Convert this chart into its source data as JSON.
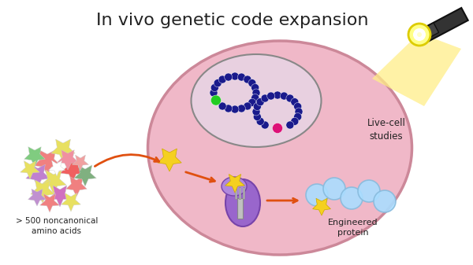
{
  "title": "In vivo genetic code expansion",
  "title_fontsize": 16,
  "title_color": "#222222",
  "background_color": "#ffffff",
  "label_amino": "> 500 noncanonical\namino acids",
  "label_livecell": "Live-cell\nstudies",
  "label_engineered": "Engineered\nprotein",
  "cell_color": "#f0b8c8",
  "cell_edge_color": "#cc8899",
  "nucleus_color": "#e8d0e0",
  "nucleus_edge_color": "#888888",
  "star_yellow": "#f5d020",
  "star_pink": "#f08080",
  "star_red": "#e03030",
  "star_green": "#80c080",
  "star_purple": "#b080c0",
  "star_white": "#ffffff",
  "ribosome_color": "#9966cc",
  "protein_bead_color": "#aaddff",
  "dna_ring_color": "#1a1a8c",
  "arrow_color": "#e05010",
  "flashlight_beam": "#ffee88",
  "flashlight_body": "#333333"
}
